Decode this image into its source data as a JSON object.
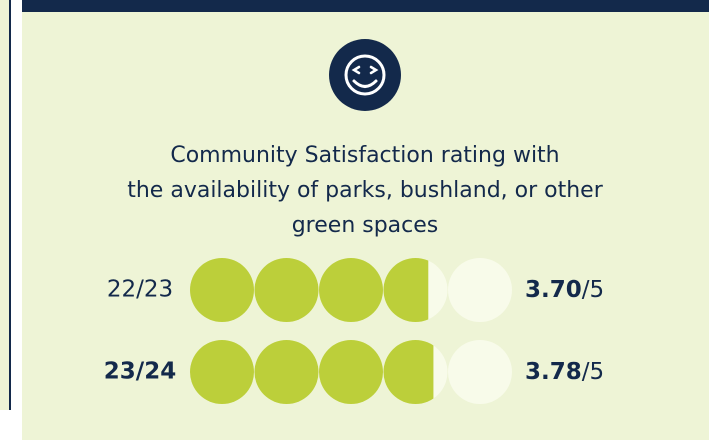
{
  "title": [
    "Community Satisfaction rating with",
    "the availability of parks, bushland, or other",
    "green spaces"
  ],
  "rows": [
    {
      "period": "22/23",
      "value": {
        "value": 3.7,
        "label": "3.70"
      },
      "scale": {
        "value": 5,
        "label": "/5"
      }
    },
    {
      "period": "23/24",
      "value": {
        "value": 3.78,
        "label": "3.78"
      },
      "scale": {
        "value": 5,
        "label": "/5"
      }
    }
  ]
}
